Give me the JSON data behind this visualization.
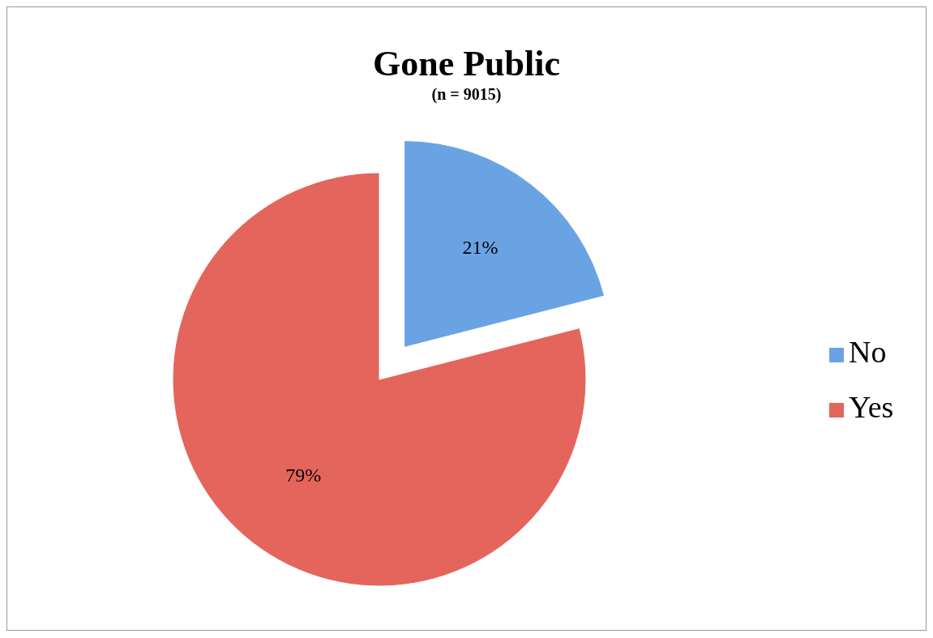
{
  "chart_data": {
    "type": "pie",
    "title": "Gone Public",
    "subtitle": "(n = 9015)",
    "categories": [
      "No",
      "Yes"
    ],
    "values": [
      21,
      79
    ],
    "value_labels": [
      "21%",
      "79%"
    ],
    "colors": [
      "#6aa3e3",
      "#e4655c"
    ],
    "legend": "right"
  }
}
